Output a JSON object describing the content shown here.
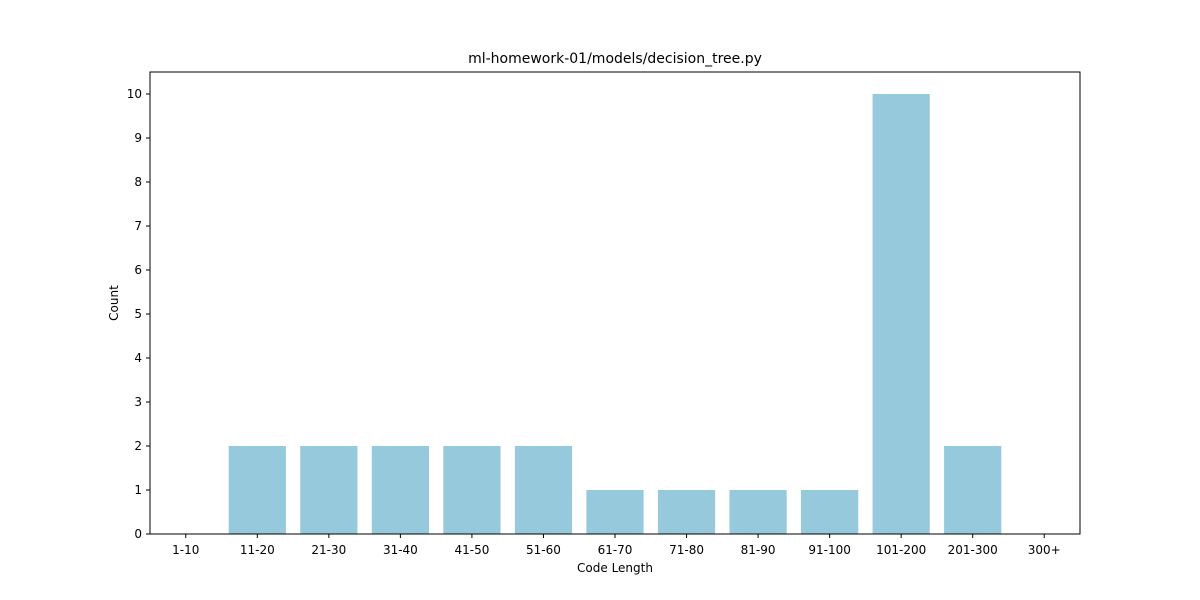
{
  "chart_data": {
    "type": "bar",
    "title": "ml-homework-01/models/decision_tree.py",
    "xlabel": "Code Length",
    "ylabel": "Count",
    "categories": [
      "1-10",
      "11-20",
      "21-30",
      "31-40",
      "41-50",
      "51-60",
      "61-70",
      "71-80",
      "81-90",
      "91-100",
      "101-200",
      "201-300",
      "300+"
    ],
    "values": [
      0,
      2,
      2,
      2,
      2,
      2,
      1,
      1,
      1,
      1,
      10,
      2,
      0
    ],
    "ylim": [
      0,
      10.5
    ],
    "yticks": [
      "0",
      "1",
      "2",
      "3",
      "4",
      "5",
      "6",
      "7",
      "8",
      "9",
      "10"
    ],
    "grid": false,
    "bar_color": "#96c9dc"
  }
}
